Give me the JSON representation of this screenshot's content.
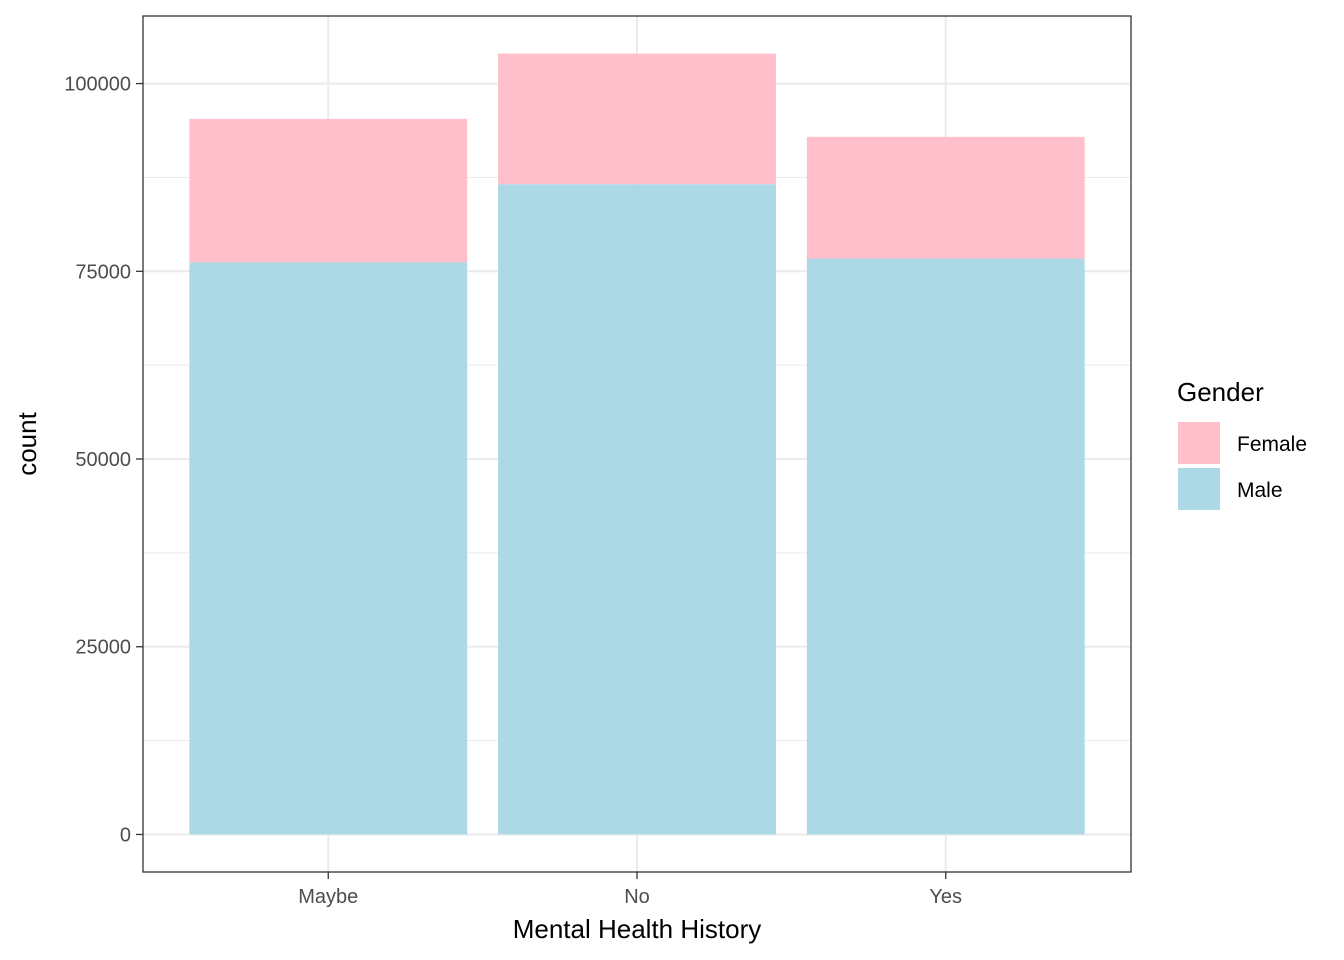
{
  "chart_data": {
    "type": "bar",
    "stacked": true,
    "categories": [
      "Maybe",
      "No",
      "Yes"
    ],
    "series": [
      {
        "name": "Male",
        "color": "#ADD8E6",
        "values": [
          76200,
          86600,
          76700
        ]
      },
      {
        "name": "Female",
        "color": "#FFC0CB",
        "values": [
          19100,
          17400,
          16200
        ]
      }
    ],
    "xlabel": "Mental Health History",
    "ylabel": "count",
    "ylim": [
      -5000,
      109000
    ],
    "yticks": [
      0,
      25000,
      50000,
      75000,
      100000
    ],
    "ytick_labels": [
      "0",
      "25000",
      "50000",
      "75000",
      "100000"
    ],
    "grid": true,
    "legend": {
      "title": "Gender",
      "position": "right",
      "items": [
        {
          "label": "Female",
          "color": "#FFC0CB"
        },
        {
          "label": "Male",
          "color": "#ADD8E6"
        }
      ]
    }
  }
}
